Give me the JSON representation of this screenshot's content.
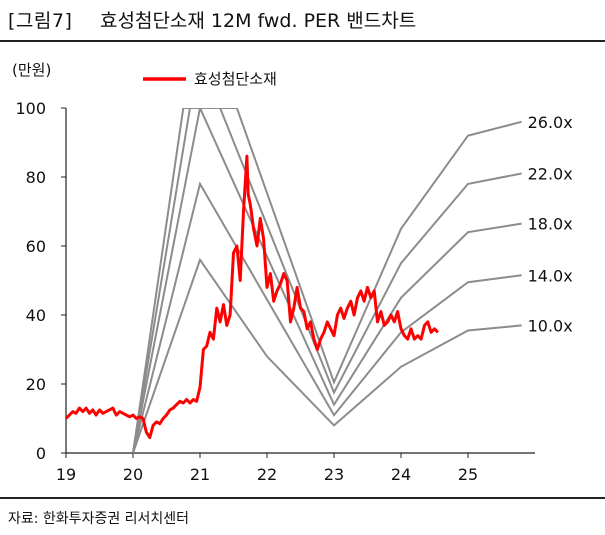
{
  "header": {
    "figure_label": "[그림7]",
    "title": "효성첨단소재 12M fwd. PER 밴드차트"
  },
  "footer": {
    "source": "자료: 한화투자증권 리서치센터"
  },
  "chart_data": {
    "type": "line",
    "unit_label": "(만원)",
    "legend": {
      "label": "효성첨단소재",
      "color": "#ff0000",
      "placement": "top-left"
    },
    "band_color": "#8c8c8c",
    "x_ticks": [
      "19",
      "20",
      "21",
      "22",
      "23",
      "24",
      "25"
    ],
    "xlim": [
      19,
      26
    ],
    "y_ticks": [
      "0",
      "20",
      "40",
      "60",
      "80",
      "100"
    ],
    "ylim": [
      0,
      100
    ],
    "grid": false,
    "bands": [
      {
        "name": "26.0x",
        "points": [
          [
            20.0,
            0
          ],
          [
            20.75,
            100
          ],
          [
            21.55,
            100
          ],
          [
            23.0,
            20.5
          ],
          [
            24.0,
            65
          ],
          [
            25.0,
            92
          ],
          [
            25.8,
            96
          ]
        ]
      },
      {
        "name": "22.0x",
        "points": [
          [
            20.0,
            0
          ],
          [
            20.85,
            100
          ],
          [
            21.3,
            100
          ],
          [
            23.0,
            17.5
          ],
          [
            24.0,
            55
          ],
          [
            25.0,
            78
          ],
          [
            25.8,
            81
          ]
        ]
      },
      {
        "name": "18.0x",
        "points": [
          [
            20.0,
            0
          ],
          [
            21.0,
            100
          ],
          [
            23.0,
            14
          ],
          [
            24.0,
            45
          ],
          [
            25.0,
            64
          ],
          [
            25.8,
            66.5
          ]
        ]
      },
      {
        "name": "14.0x",
        "points": [
          [
            20.0,
            0
          ],
          [
            21.0,
            78
          ],
          [
            23.0,
            11
          ],
          [
            24.0,
            35
          ],
          [
            25.0,
            49.5
          ],
          [
            25.8,
            51.5
          ]
        ]
      },
      {
        "name": "10.0x",
        "points": [
          [
            20.0,
            0
          ],
          [
            21.0,
            56
          ],
          [
            22.0,
            28
          ],
          [
            23.0,
            8
          ],
          [
            24.0,
            25
          ],
          [
            25.0,
            35.5
          ],
          [
            25.8,
            37
          ]
        ]
      }
    ],
    "series": [
      {
        "name": "효성첨단소재",
        "color": "#ff0000",
        "points": [
          [
            19.0,
            10
          ],
          [
            19.05,
            11
          ],
          [
            19.1,
            12
          ],
          [
            19.15,
            11.5
          ],
          [
            19.2,
            13
          ],
          [
            19.25,
            12
          ],
          [
            19.3,
            13
          ],
          [
            19.35,
            11.5
          ],
          [
            19.4,
            12.5
          ],
          [
            19.45,
            11
          ],
          [
            19.5,
            12.5
          ],
          [
            19.55,
            11.5
          ],
          [
            19.6,
            12
          ],
          [
            19.65,
            12.5
          ],
          [
            19.7,
            13
          ],
          [
            19.75,
            11
          ],
          [
            19.8,
            12
          ],
          [
            19.85,
            11.5
          ],
          [
            19.9,
            11
          ],
          [
            19.95,
            10.5
          ],
          [
            20.0,
            11
          ],
          [
            20.05,
            10
          ],
          [
            20.1,
            10.5
          ],
          [
            20.15,
            10
          ],
          [
            20.2,
            6
          ],
          [
            20.25,
            4.5
          ],
          [
            20.3,
            8
          ],
          [
            20.35,
            9
          ],
          [
            20.4,
            8.5
          ],
          [
            20.45,
            10
          ],
          [
            20.5,
            11
          ],
          [
            20.55,
            12.5
          ],
          [
            20.6,
            13
          ],
          [
            20.65,
            14
          ],
          [
            20.7,
            15
          ],
          [
            20.75,
            14.5
          ],
          [
            20.8,
            15.5
          ],
          [
            20.85,
            14.5
          ],
          [
            20.9,
            15.5
          ],
          [
            20.95,
            15
          ],
          [
            21.0,
            19
          ],
          [
            21.05,
            30
          ],
          [
            21.1,
            31
          ],
          [
            21.15,
            35
          ],
          [
            21.2,
            33
          ],
          [
            21.25,
            42
          ],
          [
            21.3,
            38
          ],
          [
            21.35,
            43
          ],
          [
            21.4,
            37
          ],
          [
            21.45,
            40
          ],
          [
            21.5,
            58
          ],
          [
            21.55,
            60
          ],
          [
            21.6,
            50
          ],
          [
            21.65,
            70
          ],
          [
            21.7,
            86
          ],
          [
            21.72,
            75
          ],
          [
            21.75,
            72
          ],
          [
            21.8,
            65
          ],
          [
            21.85,
            60
          ],
          [
            21.9,
            68
          ],
          [
            21.95,
            62
          ],
          [
            22.0,
            48
          ],
          [
            22.05,
            52
          ],
          [
            22.1,
            44
          ],
          [
            22.15,
            47
          ],
          [
            22.2,
            49
          ],
          [
            22.25,
            52
          ],
          [
            22.3,
            50
          ],
          [
            22.35,
            38
          ],
          [
            22.4,
            42
          ],
          [
            22.45,
            48
          ],
          [
            22.5,
            42
          ],
          [
            22.55,
            41
          ],
          [
            22.6,
            36
          ],
          [
            22.65,
            38
          ],
          [
            22.7,
            33
          ],
          [
            22.75,
            30
          ],
          [
            22.8,
            33
          ],
          [
            22.85,
            35
          ],
          [
            22.9,
            38
          ],
          [
            22.95,
            36
          ],
          [
            23.0,
            34
          ],
          [
            23.05,
            40
          ],
          [
            23.1,
            42
          ],
          [
            23.15,
            39
          ],
          [
            23.2,
            42
          ],
          [
            23.25,
            44
          ],
          [
            23.3,
            40
          ],
          [
            23.35,
            45
          ],
          [
            23.4,
            47
          ],
          [
            23.45,
            44
          ],
          [
            23.5,
            48
          ],
          [
            23.55,
            45
          ],
          [
            23.6,
            47
          ],
          [
            23.65,
            38
          ],
          [
            23.7,
            41
          ],
          [
            23.75,
            37
          ],
          [
            23.8,
            38
          ],
          [
            23.85,
            40
          ],
          [
            23.9,
            38
          ],
          [
            23.95,
            41
          ],
          [
            24.0,
            36
          ],
          [
            24.05,
            34
          ],
          [
            24.1,
            33
          ],
          [
            24.15,
            36
          ],
          [
            24.2,
            33
          ],
          [
            24.25,
            34
          ],
          [
            24.3,
            33
          ],
          [
            24.35,
            37
          ],
          [
            24.4,
            38
          ],
          [
            24.45,
            35
          ],
          [
            24.5,
            36
          ],
          [
            24.55,
            35
          ]
        ]
      }
    ]
  }
}
